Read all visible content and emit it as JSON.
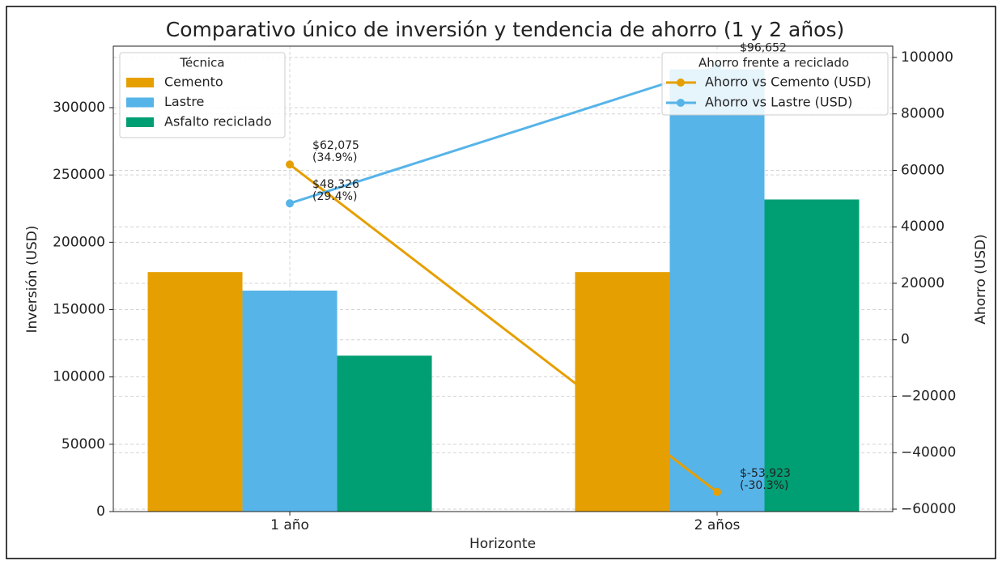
{
  "chart_data": {
    "type": "bar_line",
    "title": "Comparativo único de inversión y tendencia de ahorro (1 y 2 años)",
    "x_label": "Horizonte",
    "y_label": "Inversión (USD)",
    "y2_label": "Ahorro (USD)",
    "categories": [
      "1 año",
      "2 años"
    ],
    "legend_title": "Técnica",
    "legend2_title": "Ahorro frente a reciclado",
    "series": [
      {
        "name": "Cemento",
        "color": "#E69F00",
        "type": "bar",
        "values": [
          177870,
          177870
        ]
      },
      {
        "name": "Lastre",
        "color": "#56B4E9",
        "type": "bar",
        "values": [
          164121,
          328445
        ]
      },
      {
        "name": "Asfalto reciclado",
        "color": "#009E73",
        "type": "bar",
        "values": [
          115795,
          231793
        ]
      },
      {
        "name": "Ahorro vs Cemento (USD)",
        "color": "#E69F00",
        "type": "line",
        "axis": "y2",
        "values": [
          62075,
          -53923
        ],
        "value_labels": [
          [
            "$62,075",
            "(34.9%)"
          ],
          [
            "$-53,923",
            "(-30.3%)"
          ]
        ]
      },
      {
        "name": "Ahorro vs Lastre (USD)",
        "color": "#56B4E9",
        "type": "line",
        "axis": "y2",
        "values": [
          48326,
          96652
        ],
        "value_labels": [
          [
            "$48,326",
            "(29.4%)"
          ],
          [
            "$96,652",
            null
          ]
        ]
      }
    ],
    "ylim": [
      0,
      345700
    ],
    "yticks": [
      0,
      50000,
      100000,
      150000,
      200000,
      250000,
      300000
    ],
    "y2lim": [
      -60860,
      104000
    ],
    "y2ticks": [
      {
        "value": -60000,
        "label": "−60000"
      },
      {
        "value": -40000,
        "label": "−40000"
      },
      {
        "value": -20000,
        "label": "−20000"
      },
      0,
      20000,
      40000,
      60000,
      80000,
      100000
    ],
    "grid": true
  }
}
